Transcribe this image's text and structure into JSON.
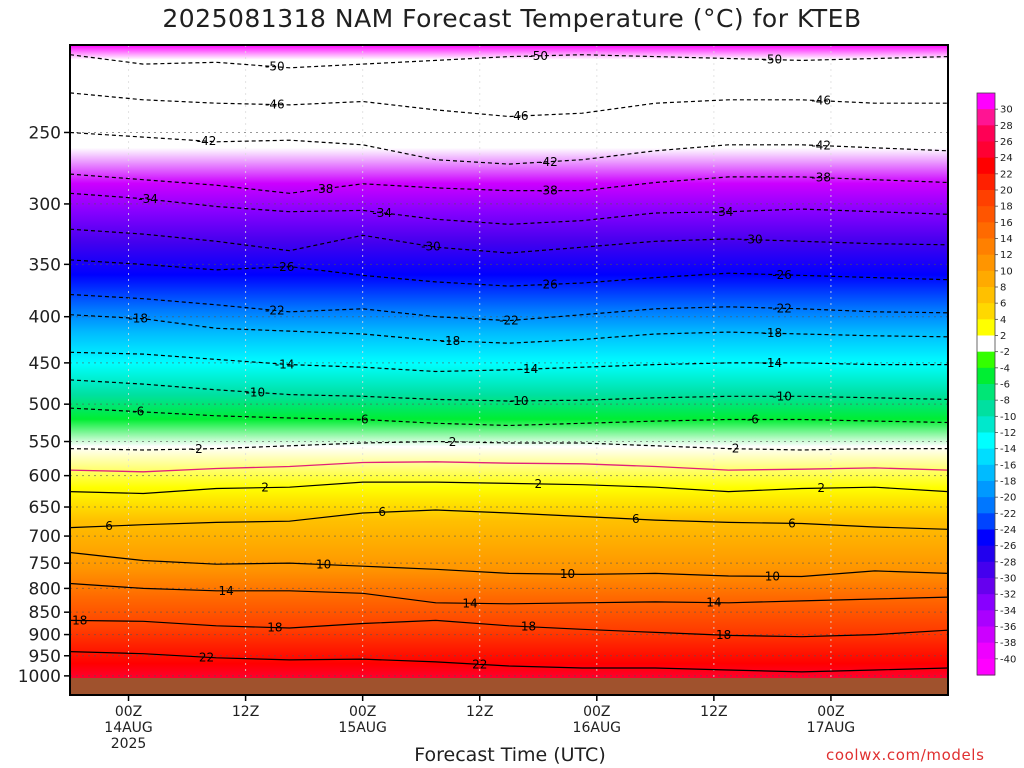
{
  "chart_data": {
    "type": "heatmap",
    "title": "2025081318 NAM Forecast Temperature (°C) for KTEB",
    "xlabel": "Forecast Time (UTC)",
    "ylabel": "",
    "credit": "coolwx.com/models",
    "y_axis": {
      "scale": "log",
      "reversed": true,
      "ylim": [
        1050,
        200
      ],
      "ticks": [
        250,
        300,
        350,
        400,
        450,
        500,
        550,
        600,
        650,
        700,
        750,
        800,
        850,
        900,
        950,
        1000
      ]
    },
    "x_axis": {
      "xlim": [
        -6,
        84
      ],
      "ticks": [
        {
          "hour": 0,
          "lines": [
            "00Z",
            "14AUG",
            "2025"
          ]
        },
        {
          "hour": 12,
          "lines": [
            "12Z"
          ]
        },
        {
          "hour": 24,
          "lines": [
            "00Z",
            "15AUG"
          ]
        },
        {
          "hour": 36,
          "lines": [
            "12Z"
          ]
        },
        {
          "hour": 48,
          "lines": [
            "00Z",
            "16AUG"
          ]
        },
        {
          "hour": 60,
          "lines": [
            "12Z"
          ]
        },
        {
          "hour": 72,
          "lines": [
            "00Z",
            "17AUG"
          ]
        }
      ]
    },
    "colorbar": {
      "levels": [
        30,
        28,
        26,
        24,
        22,
        20,
        18,
        16,
        14,
        12,
        10,
        8,
        6,
        4,
        2,
        -2,
        -4,
        -6,
        -8,
        -10,
        -12,
        -14,
        -16,
        -18,
        -20,
        -22,
        -24,
        -26,
        -28,
        -30,
        -32,
        -34,
        -36,
        -38,
        -40
      ],
      "colors": [
        "#ff00ff",
        "#ff1493",
        "#ff0055",
        "#ff0033",
        "#ff0000",
        "#ff2000",
        "#ff4000",
        "#ff5500",
        "#ff6a00",
        "#ff8000",
        "#ff9500",
        "#ffaa00",
        "#ffc000",
        "#ffd800",
        "#ffff00",
        "#ffffff",
        "#33ff00",
        "#00ee33",
        "#00e676",
        "#00e0a0",
        "#00e8cc",
        "#00ffff",
        "#00ddff",
        "#00bbff",
        "#0099ff",
        "#0077ff",
        "#0044ff",
        "#0000ff",
        "#2200ee",
        "#4400ee",
        "#6600ee",
        "#8800ff",
        "#aa00ff",
        "#cc00ff",
        "#ee00ff",
        "#ff00ff"
      ]
    },
    "contours": [
      {
        "level": -50,
        "pressure": [
          205,
          210,
          209,
          212,
          210,
          208,
          206,
          205,
          206,
          207,
          208,
          207,
          206
        ],
        "labels": [
          {
            "hour": 15,
            "text": "-50"
          },
          {
            "hour": 42,
            "text": "-50"
          },
          {
            "hour": 66,
            "text": "-50"
          }
        ]
      },
      {
        "level": -46,
        "pressure": [
          226,
          230,
          232,
          233,
          231,
          236,
          240,
          238,
          232,
          230,
          230,
          232,
          232
        ],
        "labels": [
          {
            "hour": 15,
            "text": "-46"
          },
          {
            "hour": 40,
            "text": "-46"
          },
          {
            "hour": 71,
            "text": "-46"
          }
        ]
      },
      {
        "level": -42,
        "pressure": [
          250,
          253,
          256,
          255,
          258,
          268,
          271,
          268,
          262,
          258,
          258,
          260,
          262
        ],
        "labels": [
          {
            "hour": 8,
            "text": "-42"
          },
          {
            "hour": 43,
            "text": "-42"
          },
          {
            "hour": 71,
            "text": "-42"
          }
        ]
      },
      {
        "level": -38,
        "pressure": [
          278,
          282,
          286,
          292,
          285,
          288,
          290,
          290,
          284,
          280,
          280,
          282,
          284
        ],
        "labels": [
          {
            "hour": 20,
            "text": "-38"
          },
          {
            "hour": 43,
            "text": "-38"
          },
          {
            "hour": 71,
            "text": "-38"
          }
        ]
      },
      {
        "level": -34,
        "pressure": [
          292,
          296,
          302,
          306,
          305,
          312,
          316,
          313,
          307,
          306,
          304,
          306,
          308
        ],
        "labels": [
          {
            "hour": 2,
            "text": "-34"
          },
          {
            "hour": 26,
            "text": "-34"
          },
          {
            "hour": 61,
            "text": "-34"
          }
        ]
      },
      {
        "level": -30,
        "pressure": [
          320,
          324,
          330,
          338,
          325,
          335,
          340,
          335,
          330,
          328,
          330,
          332,
          333
        ],
        "labels": [
          {
            "hour": 31,
            "text": "-30"
          },
          {
            "hour": 64,
            "text": "-30"
          }
        ]
      },
      {
        "level": -26,
        "pressure": [
          346,
          350,
          355,
          352,
          360,
          366,
          370,
          367,
          362,
          358,
          360,
          362,
          364
        ],
        "labels": [
          {
            "hour": 16,
            "text": "-26"
          },
          {
            "hour": 43,
            "text": "-26"
          },
          {
            "hour": 67,
            "text": "-26"
          }
        ]
      },
      {
        "level": -22,
        "pressure": [
          378,
          382,
          388,
          395,
          392,
          400,
          404,
          398,
          392,
          390,
          392,
          395,
          396
        ],
        "labels": [
          {
            "hour": 15,
            "text": "-22"
          },
          {
            "hour": 39,
            "text": "-22"
          },
          {
            "hour": 67,
            "text": "-22"
          }
        ]
      },
      {
        "level": -18,
        "pressure": [
          398,
          402,
          412,
          415,
          418,
          425,
          428,
          424,
          418,
          416,
          418,
          420,
          421
        ],
        "labels": [
          {
            "hour": 1,
            "text": "-18"
          },
          {
            "hour": 33,
            "text": "-18"
          },
          {
            "hour": 66,
            "text": "-18"
          }
        ]
      },
      {
        "level": -14,
        "pressure": [
          438,
          440,
          446,
          452,
          455,
          460,
          458,
          455,
          452,
          450,
          450,
          452,
          452
        ],
        "labels": [
          {
            "hour": 16,
            "text": "-14"
          },
          {
            "hour": 41,
            "text": "-14"
          },
          {
            "hour": 66,
            "text": "-14"
          }
        ]
      },
      {
        "level": -10,
        "pressure": [
          470,
          475,
          482,
          488,
          490,
          494,
          496,
          495,
          492,
          490,
          490,
          492,
          494
        ],
        "labels": [
          {
            "hour": 13,
            "text": "-10"
          },
          {
            "hour": 40,
            "text": "-10"
          },
          {
            "hour": 67,
            "text": "-10"
          }
        ]
      },
      {
        "level": -6,
        "pressure": [
          505,
          510,
          515,
          518,
          520,
          525,
          528,
          525,
          522,
          520,
          520,
          522,
          524
        ],
        "labels": [
          {
            "hour": 1,
            "text": "-6"
          },
          {
            "hour": 24,
            "text": "-6"
          },
          {
            "hour": 64,
            "text": "-6"
          }
        ]
      },
      {
        "level": -2,
        "pressure": [
          560,
          562,
          560,
          556,
          552,
          550,
          552,
          552,
          556,
          560,
          562,
          560,
          560
        ],
        "labels": [
          {
            "hour": 7,
            "text": "-2"
          },
          {
            "hour": 33,
            "text": "-2"
          },
          {
            "hour": 62,
            "text": "-2"
          }
        ]
      },
      {
        "level": 2,
        "pressure": [
          625,
          628,
          620,
          618,
          610,
          610,
          612,
          614,
          618,
          625,
          620,
          618,
          625
        ],
        "labels": [
          {
            "hour": 14,
            "text": "2"
          },
          {
            "hour": 42,
            "text": "2"
          },
          {
            "hour": 71,
            "text": "2"
          }
        ]
      },
      {
        "level": 6,
        "pressure": [
          685,
          680,
          676,
          674,
          660,
          655,
          660,
          666,
          672,
          676,
          678,
          684,
          688
        ],
        "labels": [
          {
            "hour": -2,
            "text": "6"
          },
          {
            "hour": 26,
            "text": "6"
          },
          {
            "hour": 52,
            "text": "6"
          },
          {
            "hour": 68,
            "text": "6"
          }
        ]
      },
      {
        "level": 10,
        "pressure": [
          730,
          745,
          752,
          750,
          756,
          762,
          770,
          772,
          770,
          775,
          776,
          765,
          770
        ],
        "labels": [
          {
            "hour": 20,
            "text": "10"
          },
          {
            "hour": 45,
            "text": "10"
          },
          {
            "hour": 66,
            "text": "10"
          }
        ]
      },
      {
        "level": 14,
        "pressure": [
          790,
          800,
          805,
          805,
          810,
          830,
          832,
          830,
          828,
          830,
          826,
          822,
          818
        ],
        "labels": [
          {
            "hour": 10,
            "text": "14"
          },
          {
            "hour": 35,
            "text": "14"
          },
          {
            "hour": 60,
            "text": "14"
          }
        ]
      },
      {
        "level": 18,
        "pressure": [
          868,
          870,
          880,
          885,
          875,
          868,
          880,
          888,
          895,
          902,
          905,
          900,
          890
        ],
        "labels": [
          {
            "hour": -5,
            "text": "18"
          },
          {
            "hour": 15,
            "text": "18"
          },
          {
            "hour": 41,
            "text": "18"
          },
          {
            "hour": 61,
            "text": "18"
          }
        ]
      },
      {
        "level": 22,
        "pressure": [
          940,
          945,
          955,
          960,
          958,
          965,
          975,
          980,
          980,
          985,
          990,
          985,
          980
        ],
        "labels": [
          {
            "hour": 8,
            "text": "22"
          },
          {
            "hour": 36,
            "text": "22"
          }
        ]
      }
    ]
  }
}
